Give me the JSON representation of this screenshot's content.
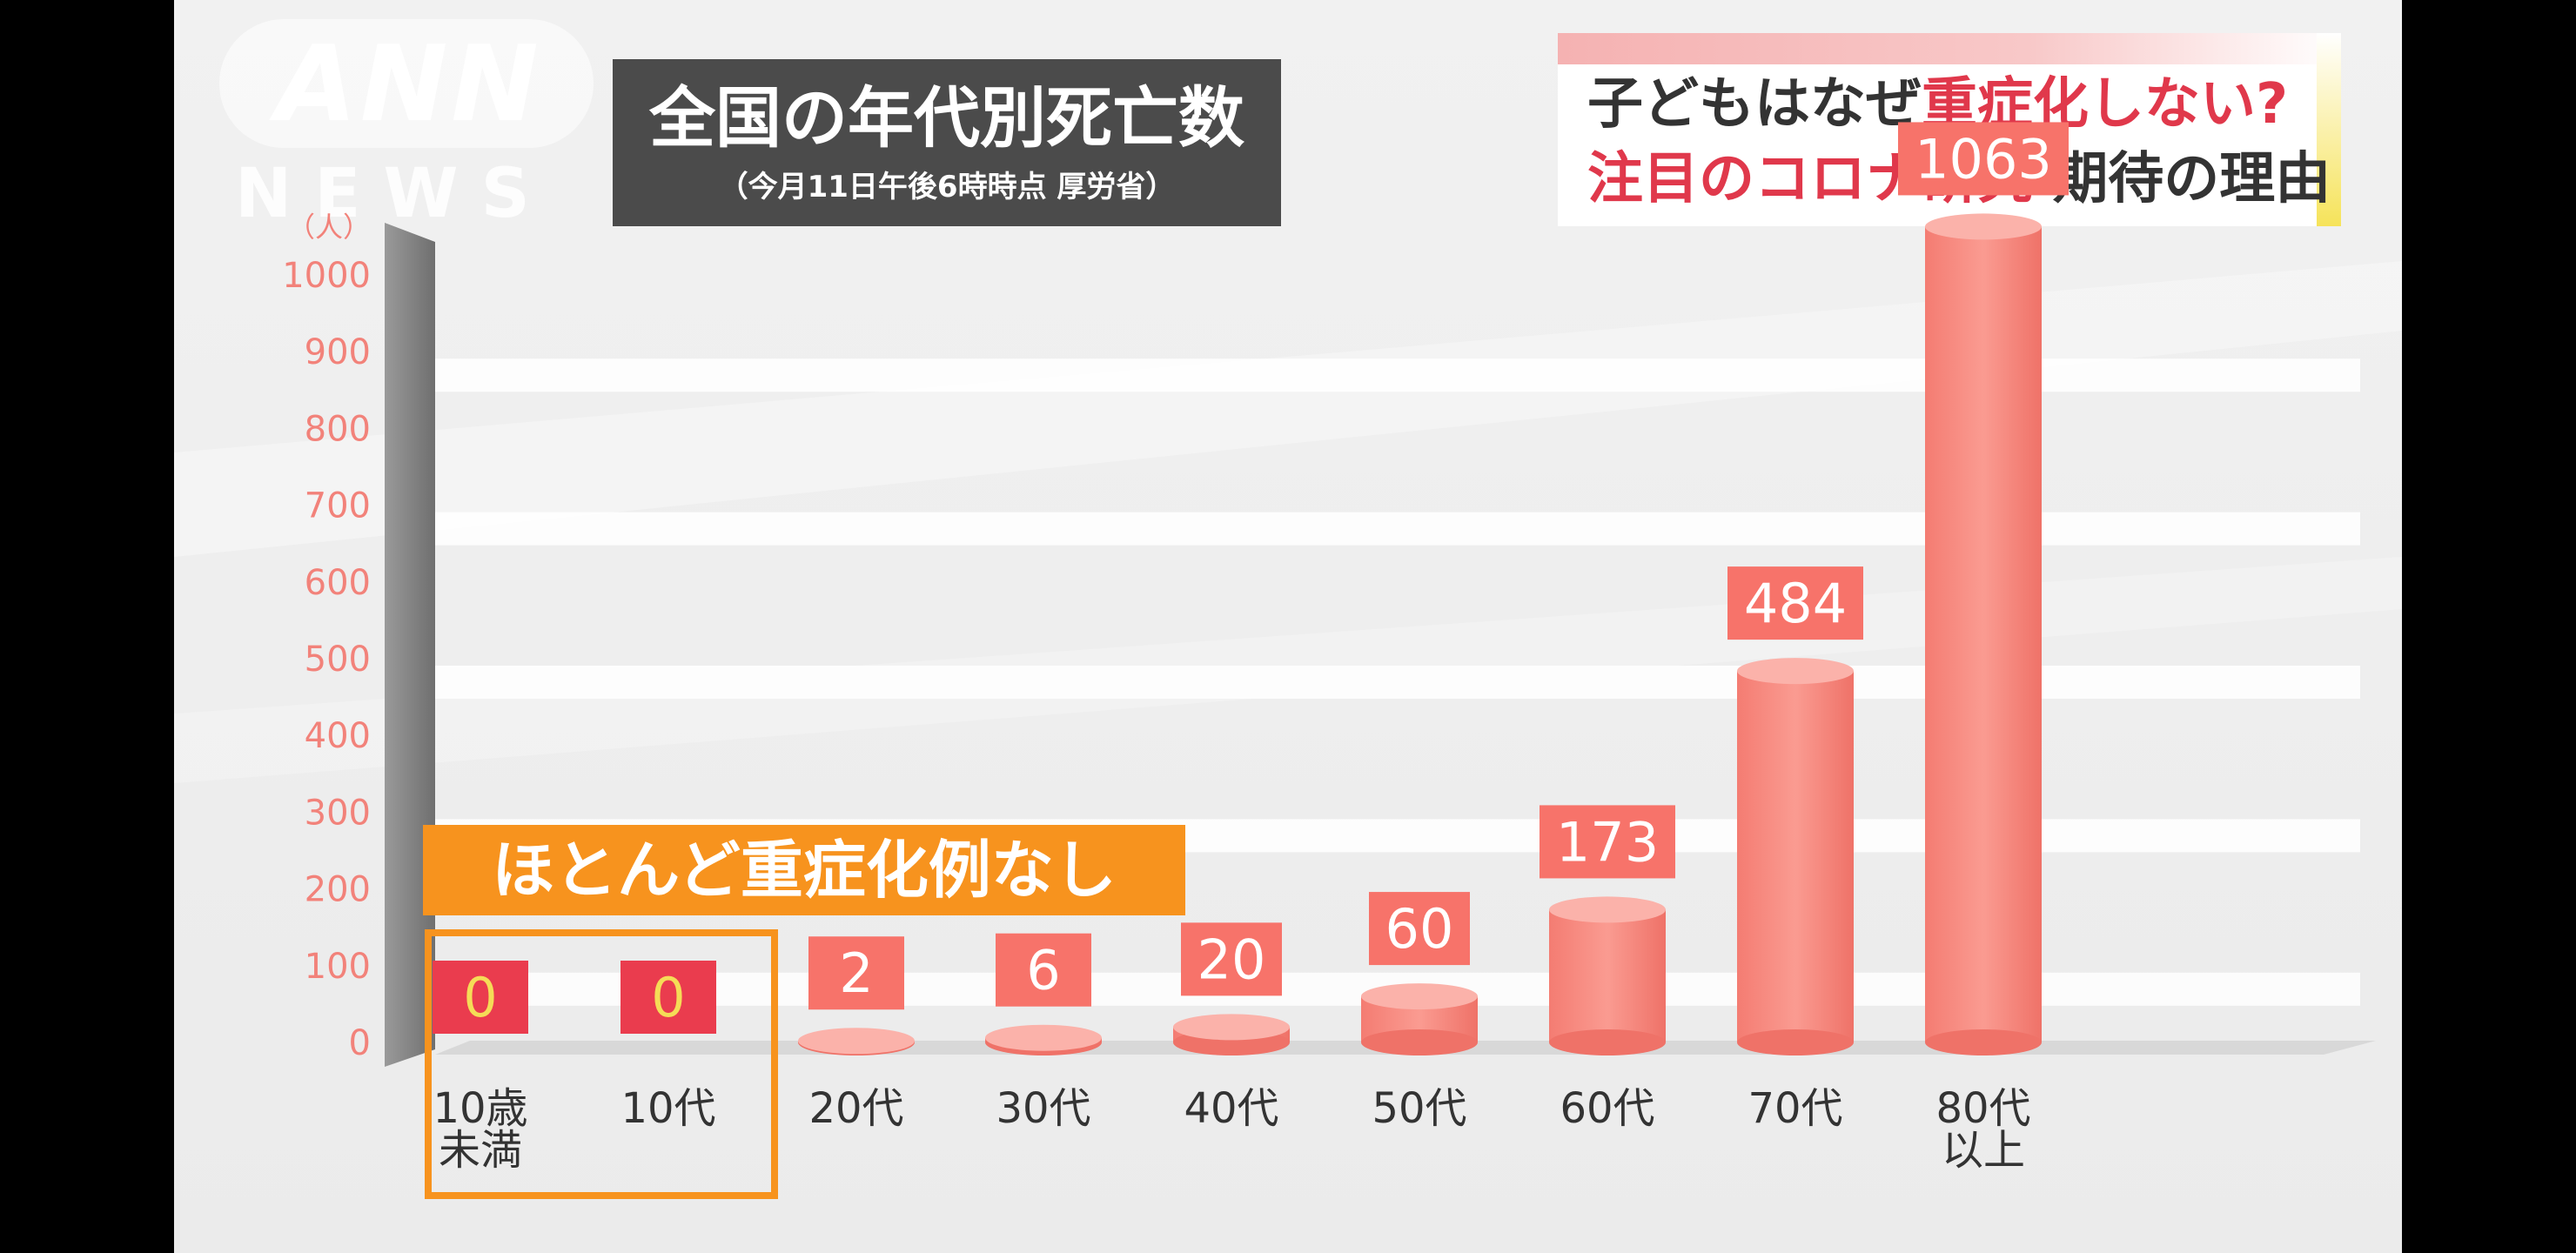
{
  "watermark": {
    "line1": "ANN",
    "line2": "NEWS"
  },
  "title_box": {
    "title": "全国の年代別死亡数",
    "subtitle": "（今月11日午後6時時点 厚労省）"
  },
  "topic_box": {
    "line1_a": "子どもはなぜ",
    "line1_b": "重症化しない?",
    "line2_a": "注目のコロナ研究",
    "line2_b": " 期待の理由"
  },
  "overlay": {
    "nearly_none": "ほとんど重症化例なし"
  },
  "colors": {
    "bar": "#f78d83",
    "bar_top": "#fbb2aa",
    "label_box": "#f7736a",
    "zero_box": "#ea3c4e",
    "zero_text": "#f5dc57",
    "tick_text": "#f2827a",
    "highlight": "#f7931e"
  },
  "chart_data": {
    "type": "bar",
    "unit_label": "（人）",
    "categories": [
      [
        "10歳",
        "未満"
      ],
      [
        "10代"
      ],
      [
        "20代"
      ],
      [
        "30代"
      ],
      [
        "40代"
      ],
      [
        "50代"
      ],
      [
        "60代"
      ],
      [
        "70代"
      ],
      [
        "80代",
        "以上"
      ]
    ],
    "values": [
      0,
      0,
      2,
      6,
      20,
      60,
      173,
      484,
      1063
    ],
    "value_labels": [
      "0",
      "0",
      "2",
      "6",
      "20",
      "60",
      "173",
      "484",
      "1063"
    ],
    "yticks": [
      0,
      100,
      200,
      300,
      400,
      500,
      600,
      700,
      800,
      900,
      1000
    ],
    "ylim": [
      0,
      1000
    ],
    "grid": true
  }
}
